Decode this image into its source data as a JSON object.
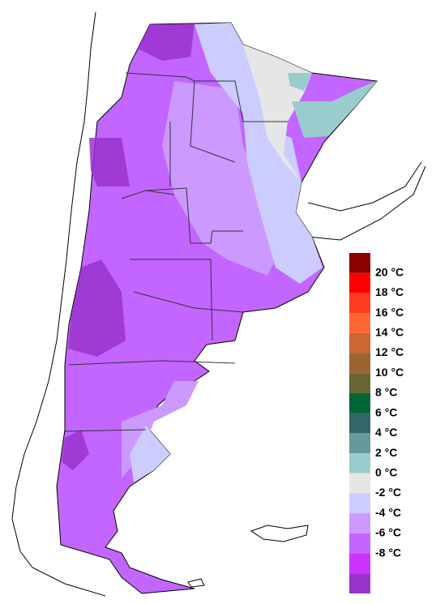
{
  "legend": {
    "colors": [
      "#8b0000",
      "#ff0000",
      "#ff3c1e",
      "#ff6633",
      "#cc6633",
      "#996633",
      "#666633",
      "#006633",
      "#336666",
      "#669999",
      "#99cccc",
      "#e6e6e6",
      "#ccccff",
      "#cc99ff",
      "#c266ff",
      "#cc33ff",
      "#9933cc"
    ],
    "labels": [
      "20 °C",
      "18 °C",
      "16 °C",
      "14 °C",
      "12 °C",
      "10 °C",
      "8 °C",
      "6 °C",
      "4 °C",
      "2 °C",
      "0 °C",
      "-2 °C",
      "-4 °C",
      "-6 °C",
      "-8 °C"
    ]
  }
}
